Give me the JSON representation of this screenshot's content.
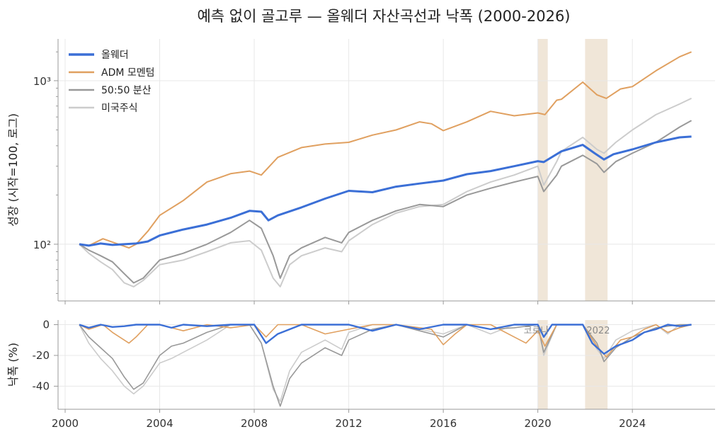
{
  "chart_data": {
    "title": "예측 없이 골고루 — 올웨더 자산곡선과 낙폭 (2000-2026)",
    "type": "line",
    "log_y_top": true,
    "xlim": [
      1999.7,
      2027.5
    ],
    "x_ticks": [
      "2000",
      "2004",
      "2008",
      "2012",
      "2016",
      "2020",
      "2024"
    ],
    "top_panel": {
      "ylabel": "성장 (시작=100, 로그)",
      "ylim": [
        45,
        1800
      ],
      "y_tick_labels": [
        "10²",
        "10³"
      ],
      "y_tick_values": [
        100,
        1000
      ],
      "grid": true
    },
    "bottom_panel": {
      "ylabel": "낙폭 (%)",
      "ylim": [
        -55,
        3
      ],
      "y_ticks": [
        0,
        -20,
        -40
      ],
      "grid": true
    },
    "shaded_periods": [
      {
        "label": "코로나",
        "start": 2020.0,
        "end": 2020.42
      },
      {
        "label": "2022",
        "start": 2022.0,
        "end": 2022.95
      }
    ],
    "legend_position": "top-left",
    "series": [
      {
        "name": "올웨더",
        "color": "#3b6fd6",
        "width": 3,
        "points": [
          [
            2000.6,
            100
          ],
          [
            2001,
            98
          ],
          [
            2001.5,
            101
          ],
          [
            2002,
            99
          ],
          [
            2002.5,
            100
          ],
          [
            2003,
            101
          ],
          [
            2003.5,
            104
          ],
          [
            2004,
            113
          ],
          [
            2005,
            123
          ],
          [
            2006,
            132
          ],
          [
            2007,
            145
          ],
          [
            2007.8,
            160
          ],
          [
            2008.3,
            158
          ],
          [
            2008.6,
            140
          ],
          [
            2009,
            150
          ],
          [
            2010,
            168
          ],
          [
            2011,
            190
          ],
          [
            2012,
            212
          ],
          [
            2013,
            208
          ],
          [
            2014,
            225
          ],
          [
            2015,
            235
          ],
          [
            2016,
            245
          ],
          [
            2017,
            268
          ],
          [
            2018,
            280
          ],
          [
            2019,
            300
          ],
          [
            2020,
            322
          ],
          [
            2020.25,
            318
          ],
          [
            2021,
            370
          ],
          [
            2021.9,
            405
          ],
          [
            2022.4,
            360
          ],
          [
            2022.8,
            330
          ],
          [
            2023.2,
            355
          ],
          [
            2024,
            380
          ],
          [
            2025,
            420
          ],
          [
            2026,
            450
          ],
          [
            2026.5,
            455
          ]
        ],
        "drawdown": [
          [
            2000.6,
            0
          ],
          [
            2001,
            -2
          ],
          [
            2001.5,
            0
          ],
          [
            2002,
            -1.5
          ],
          [
            2002.5,
            -1
          ],
          [
            2003,
            0
          ],
          [
            2004,
            0
          ],
          [
            2004.5,
            -2
          ],
          [
            2005,
            0
          ],
          [
            2006,
            -1
          ],
          [
            2007,
            0
          ],
          [
            2008,
            0
          ],
          [
            2008.5,
            -12
          ],
          [
            2009,
            -6
          ],
          [
            2010,
            0
          ],
          [
            2011,
            0
          ],
          [
            2012,
            0
          ],
          [
            2013,
            -4
          ],
          [
            2014,
            0
          ],
          [
            2015,
            -3
          ],
          [
            2016,
            0
          ],
          [
            2017,
            0
          ],
          [
            2018,
            -3
          ],
          [
            2019,
            0
          ],
          [
            2020,
            0
          ],
          [
            2020.25,
            -8
          ],
          [
            2020.6,
            0
          ],
          [
            2021,
            0
          ],
          [
            2021.9,
            0
          ],
          [
            2022.3,
            -12
          ],
          [
            2022.8,
            -19
          ],
          [
            2023.3,
            -14
          ],
          [
            2024,
            -10
          ],
          [
            2024.5,
            -5
          ],
          [
            2025,
            -3
          ],
          [
            2025.5,
            0
          ],
          [
            2026,
            -1
          ],
          [
            2026.5,
            0
          ]
        ]
      },
      {
        "name": "ADM 모멘텀",
        "color": "#e0a060",
        "width": 2,
        "points": [
          [
            2000.6,
            100
          ],
          [
            2001,
            98
          ],
          [
            2001.6,
            108
          ],
          [
            2002,
            103
          ],
          [
            2002.7,
            95
          ],
          [
            2003,
            100
          ],
          [
            2003.5,
            120
          ],
          [
            2004,
            150
          ],
          [
            2005,
            185
          ],
          [
            2006,
            240
          ],
          [
            2007,
            270
          ],
          [
            2007.8,
            280
          ],
          [
            2008.3,
            265
          ],
          [
            2009,
            340
          ],
          [
            2010,
            390
          ],
          [
            2011,
            410
          ],
          [
            2012,
            420
          ],
          [
            2013,
            465
          ],
          [
            2014,
            500
          ],
          [
            2015,
            560
          ],
          [
            2015.5,
            545
          ],
          [
            2016,
            495
          ],
          [
            2017,
            560
          ],
          [
            2018,
            650
          ],
          [
            2019,
            610
          ],
          [
            2020,
            635
          ],
          [
            2020.3,
            620
          ],
          [
            2020.8,
            760
          ],
          [
            2021,
            770
          ],
          [
            2021.9,
            980
          ],
          [
            2022.5,
            820
          ],
          [
            2022.9,
            780
          ],
          [
            2023.5,
            890
          ],
          [
            2024,
            920
          ],
          [
            2025,
            1150
          ],
          [
            2026,
            1400
          ],
          [
            2026.5,
            1500
          ]
        ],
        "drawdown": [
          [
            2000.6,
            0
          ],
          [
            2001,
            -3
          ],
          [
            2001.6,
            0
          ],
          [
            2002,
            -5
          ],
          [
            2002.7,
            -12
          ],
          [
            2003,
            -8
          ],
          [
            2003.5,
            0
          ],
          [
            2004,
            0
          ],
          [
            2005,
            -4
          ],
          [
            2006,
            0
          ],
          [
            2007,
            -2
          ],
          [
            2008,
            0
          ],
          [
            2008.5,
            -8
          ],
          [
            2009,
            0
          ],
          [
            2010,
            0
          ],
          [
            2011,
            -6
          ],
          [
            2012,
            -3
          ],
          [
            2013,
            0
          ],
          [
            2014,
            0
          ],
          [
            2015.5,
            -3
          ],
          [
            2016,
            -13
          ],
          [
            2016.5,
            -6
          ],
          [
            2017,
            0
          ],
          [
            2018,
            0
          ],
          [
            2019,
            -8
          ],
          [
            2019.5,
            -12
          ],
          [
            2020,
            -4
          ],
          [
            2020.3,
            -14
          ],
          [
            2020.8,
            0
          ],
          [
            2021,
            0
          ],
          [
            2021.9,
            0
          ],
          [
            2022.5,
            -14
          ],
          [
            2022.9,
            -21
          ],
          [
            2023.5,
            -10
          ],
          [
            2024,
            -8
          ],
          [
            2024.5,
            -3
          ],
          [
            2025,
            0
          ],
          [
            2025.5,
            -5
          ],
          [
            2026,
            -2
          ],
          [
            2026.5,
            0
          ]
        ]
      },
      {
        "name": "50:50 분산",
        "color": "#999999",
        "width": 2,
        "points": [
          [
            2000.6,
            100
          ],
          [
            2001,
            92
          ],
          [
            2001.5,
            85
          ],
          [
            2002,
            78
          ],
          [
            2002.5,
            66
          ],
          [
            2002.9,
            58
          ],
          [
            2003.3,
            62
          ],
          [
            2004,
            80
          ],
          [
            2005,
            88
          ],
          [
            2006,
            100
          ],
          [
            2007,
            118
          ],
          [
            2007.8,
            140
          ],
          [
            2008.3,
            125
          ],
          [
            2008.8,
            85
          ],
          [
            2009.1,
            62
          ],
          [
            2009.5,
            85
          ],
          [
            2010,
            95
          ],
          [
            2011,
            110
          ],
          [
            2011.7,
            102
          ],
          [
            2012,
            118
          ],
          [
            2013,
            140
          ],
          [
            2014,
            160
          ],
          [
            2015,
            175
          ],
          [
            2016,
            170
          ],
          [
            2017,
            200
          ],
          [
            2018,
            220
          ],
          [
            2019,
            240
          ],
          [
            2020,
            260
          ],
          [
            2020.25,
            210
          ],
          [
            2020.8,
            265
          ],
          [
            2021,
            300
          ],
          [
            2021.9,
            350
          ],
          [
            2022.5,
            310
          ],
          [
            2022.8,
            275
          ],
          [
            2023.3,
            320
          ],
          [
            2024,
            360
          ],
          [
            2025,
            420
          ],
          [
            2026,
            520
          ],
          [
            2026.5,
            570
          ]
        ],
        "drawdown": [
          [
            2000.6,
            0
          ],
          [
            2001,
            -8
          ],
          [
            2001.5,
            -15
          ],
          [
            2002,
            -22
          ],
          [
            2002.5,
            -34
          ],
          [
            2002.9,
            -42
          ],
          [
            2003.3,
            -38
          ],
          [
            2004,
            -20
          ],
          [
            2004.5,
            -14
          ],
          [
            2005,
            -12
          ],
          [
            2006,
            -5
          ],
          [
            2007,
            0
          ],
          [
            2007.8,
            0
          ],
          [
            2008.3,
            -12
          ],
          [
            2008.8,
            -40
          ],
          [
            2009.1,
            -53
          ],
          [
            2009.5,
            -35
          ],
          [
            2010,
            -25
          ],
          [
            2011,
            -15
          ],
          [
            2011.7,
            -20
          ],
          [
            2012,
            -10
          ],
          [
            2013,
            -3
          ],
          [
            2014,
            0
          ],
          [
            2015,
            -4
          ],
          [
            2016,
            -8
          ],
          [
            2017,
            0
          ],
          [
            2018,
            -3
          ],
          [
            2019,
            -2
          ],
          [
            2020,
            0
          ],
          [
            2020.25,
            -18
          ],
          [
            2020.8,
            0
          ],
          [
            2021,
            0
          ],
          [
            2021.9,
            0
          ],
          [
            2022.5,
            -12
          ],
          [
            2022.8,
            -24
          ],
          [
            2023.3,
            -15
          ],
          [
            2024,
            -8
          ],
          [
            2025,
            -2
          ],
          [
            2026,
            0
          ],
          [
            2026.5,
            0
          ]
        ]
      },
      {
        "name": "미국주식",
        "color": "#cccccc",
        "width": 2,
        "points": [
          [
            2000.6,
            100
          ],
          [
            2001,
            88
          ],
          [
            2001.5,
            78
          ],
          [
            2002,
            70
          ],
          [
            2002.5,
            58
          ],
          [
            2002.9,
            55
          ],
          [
            2003.3,
            60
          ],
          [
            2004,
            75
          ],
          [
            2005,
            80
          ],
          [
            2006,
            90
          ],
          [
            2007,
            102
          ],
          [
            2007.8,
            105
          ],
          [
            2008.3,
            92
          ],
          [
            2008.8,
            62
          ],
          [
            2009.1,
            55
          ],
          [
            2009.5,
            75
          ],
          [
            2010,
            85
          ],
          [
            2011,
            95
          ],
          [
            2011.7,
            90
          ],
          [
            2012,
            105
          ],
          [
            2013,
            132
          ],
          [
            2014,
            155
          ],
          [
            2015,
            170
          ],
          [
            2016,
            175
          ],
          [
            2017,
            210
          ],
          [
            2018,
            240
          ],
          [
            2019,
            265
          ],
          [
            2020,
            300
          ],
          [
            2020.25,
            230
          ],
          [
            2020.8,
            320
          ],
          [
            2021,
            370
          ],
          [
            2021.9,
            450
          ],
          [
            2022.5,
            380
          ],
          [
            2022.8,
            360
          ],
          [
            2023.3,
            420
          ],
          [
            2024,
            500
          ],
          [
            2025,
            620
          ],
          [
            2026,
            720
          ],
          [
            2026.5,
            780
          ]
        ],
        "drawdown": [
          [
            2000.6,
            0
          ],
          [
            2001,
            -12
          ],
          [
            2001.5,
            -22
          ],
          [
            2002,
            -30
          ],
          [
            2002.5,
            -40
          ],
          [
            2002.9,
            -45
          ],
          [
            2003.3,
            -40
          ],
          [
            2004,
            -25
          ],
          [
            2004.5,
            -22
          ],
          [
            2005,
            -18
          ],
          [
            2006,
            -10
          ],
          [
            2007,
            0
          ],
          [
            2007.8,
            0
          ],
          [
            2008.3,
            -12
          ],
          [
            2008.8,
            -42
          ],
          [
            2009.1,
            -50
          ],
          [
            2009.5,
            -30
          ],
          [
            2010,
            -18
          ],
          [
            2011,
            -10
          ],
          [
            2011.7,
            -16
          ],
          [
            2012,
            -5
          ],
          [
            2013,
            0
          ],
          [
            2014,
            0
          ],
          [
            2015,
            -3
          ],
          [
            2016,
            -6
          ],
          [
            2017,
            0
          ],
          [
            2018,
            -6
          ],
          [
            2019,
            0
          ],
          [
            2020,
            0
          ],
          [
            2020.25,
            -20
          ],
          [
            2020.8,
            0
          ],
          [
            2021,
            0
          ],
          [
            2021.9,
            0
          ],
          [
            2022.5,
            -16
          ],
          [
            2022.8,
            -22
          ],
          [
            2023.3,
            -10
          ],
          [
            2024,
            -4
          ],
          [
            2025,
            0
          ],
          [
            2025.5,
            -6
          ],
          [
            2026,
            0
          ],
          [
            2026.5,
            0
          ]
        ]
      }
    ]
  }
}
